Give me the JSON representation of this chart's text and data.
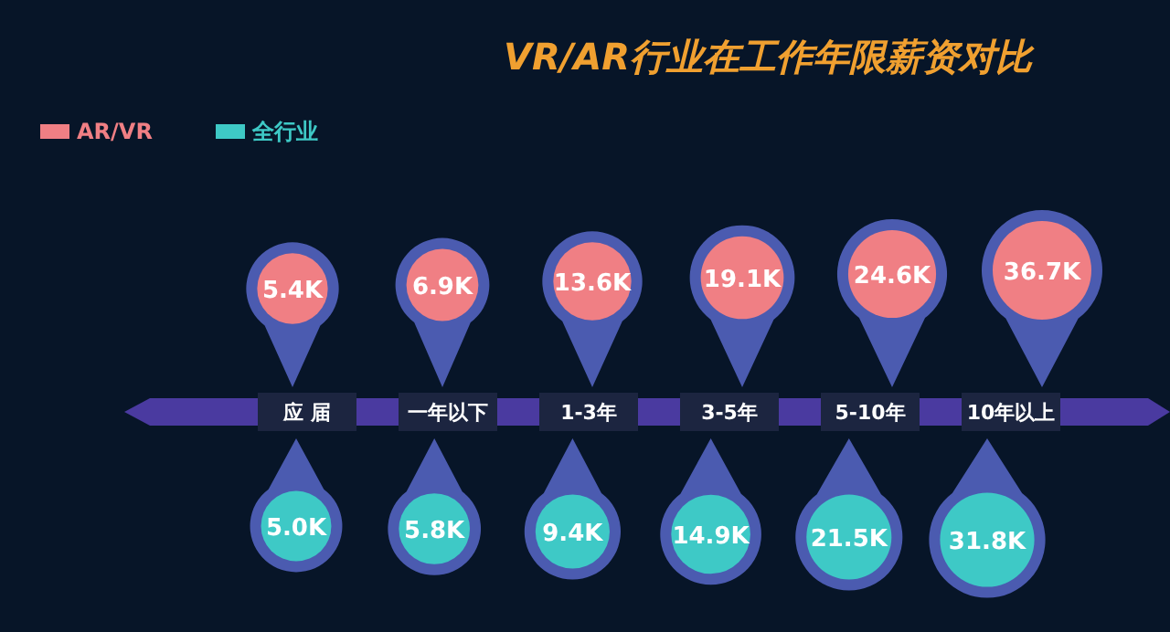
{
  "chart_data": {
    "type": "other",
    "title": "VR/AR行业在工作年限薪资对比",
    "categories": [
      "应 届",
      "一年以下",
      "1-3年",
      "3-5年",
      "5-10年",
      "10年以上"
    ],
    "series": [
      {
        "name": "AR/VR",
        "color": "#f07f84",
        "values": [
          5.4,
          6.9,
          13.6,
          19.1,
          24.6,
          36.7
        ],
        "value_labels": [
          "5.4K",
          "6.9K",
          "13.6K",
          "19.1K",
          "24.6K",
          "36.7K"
        ]
      },
      {
        "name": "全行业",
        "color": "#3ec9c6",
        "values": [
          5.0,
          5.8,
          9.4,
          14.9,
          21.5,
          31.8
        ],
        "value_labels": [
          "5.0K",
          "5.8K",
          "9.4K",
          "14.9K",
          "21.5K",
          "31.8K"
        ]
      }
    ],
    "legend": "top left"
  }
}
